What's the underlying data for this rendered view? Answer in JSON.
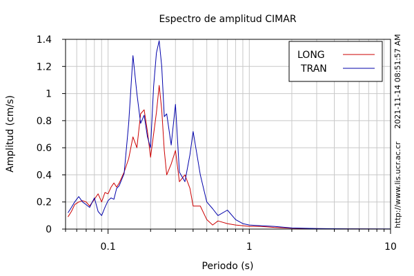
{
  "chart_data": {
    "type": "line",
    "title": "Espectro de amplitud CIMAR",
    "xlabel": "Periodo (s)",
    "ylabel": "Amplitud (cm/s)",
    "xscale": "log",
    "xlim": [
      0.05,
      10
    ],
    "ylim": [
      0,
      1.4
    ],
    "x_ticks": [
      {
        "value": 0.1,
        "label": "0.1"
      },
      {
        "value": 1,
        "label": "1"
      },
      {
        "value": 10,
        "label": "10"
      }
    ],
    "y_ticks": [
      {
        "value": 0,
        "label": "0"
      },
      {
        "value": 0.2,
        "label": "0.2"
      },
      {
        "value": 0.4,
        "label": "0.4"
      },
      {
        "value": 0.6,
        "label": "0.6"
      },
      {
        "value": 0.8,
        "label": "0.8"
      },
      {
        "value": 1,
        "label": "1"
      },
      {
        "value": 1.2,
        "label": "1.2"
      },
      {
        "value": 1.4,
        "label": "1.4"
      }
    ],
    "grid": true,
    "legend_position": "top-right",
    "series": [
      {
        "name": "LONG",
        "color": "#cc0000",
        "x": [
          0.052,
          0.055,
          0.058,
          0.062,
          0.066,
          0.07,
          0.074,
          0.08,
          0.085,
          0.09,
          0.095,
          0.1,
          0.105,
          0.11,
          0.115,
          0.12,
          0.13,
          0.14,
          0.15,
          0.16,
          0.17,
          0.18,
          0.19,
          0.2,
          0.21,
          0.22,
          0.23,
          0.24,
          0.25,
          0.26,
          0.28,
          0.3,
          0.32,
          0.35,
          0.38,
          0.4,
          0.45,
          0.5,
          0.55,
          0.6,
          0.7,
          0.8,
          0.9,
          1.0,
          1.2,
          1.5,
          2.0,
          3.0,
          5.0,
          10.0
        ],
        "y": [
          0.09,
          0.13,
          0.18,
          0.2,
          0.21,
          0.2,
          0.17,
          0.22,
          0.26,
          0.2,
          0.27,
          0.26,
          0.31,
          0.34,
          0.31,
          0.34,
          0.42,
          0.52,
          0.68,
          0.6,
          0.85,
          0.88,
          0.72,
          0.53,
          0.7,
          0.86,
          1.06,
          0.88,
          0.58,
          0.4,
          0.48,
          0.58,
          0.35,
          0.4,
          0.3,
          0.17,
          0.17,
          0.07,
          0.03,
          0.06,
          0.04,
          0.03,
          0.025,
          0.02,
          0.02,
          0.012,
          0.006,
          0.003,
          0.001,
          0.0
        ]
      },
      {
        "name": "TRAN",
        "color": "#0000aa",
        "x": [
          0.052,
          0.055,
          0.058,
          0.062,
          0.066,
          0.07,
          0.074,
          0.08,
          0.085,
          0.09,
          0.095,
          0.1,
          0.105,
          0.11,
          0.115,
          0.12,
          0.13,
          0.14,
          0.15,
          0.16,
          0.17,
          0.18,
          0.19,
          0.2,
          0.21,
          0.22,
          0.23,
          0.24,
          0.25,
          0.26,
          0.28,
          0.3,
          0.32,
          0.35,
          0.38,
          0.4,
          0.45,
          0.5,
          0.55,
          0.6,
          0.7,
          0.8,
          0.9,
          1.0,
          1.2,
          1.5,
          2.0,
          3.0,
          5.0,
          10.0
        ],
        "y": [
          0.12,
          0.16,
          0.2,
          0.24,
          0.2,
          0.18,
          0.16,
          0.23,
          0.13,
          0.1,
          0.16,
          0.21,
          0.23,
          0.22,
          0.3,
          0.32,
          0.41,
          0.78,
          1.28,
          1.0,
          0.78,
          0.84,
          0.68,
          0.6,
          1.05,
          1.3,
          1.39,
          1.2,
          0.83,
          0.85,
          0.62,
          0.92,
          0.42,
          0.35,
          0.55,
          0.72,
          0.4,
          0.2,
          0.15,
          0.1,
          0.14,
          0.07,
          0.04,
          0.03,
          0.025,
          0.02,
          0.008,
          0.004,
          0.002,
          0.001
        ]
      }
    ],
    "side_annotations": [
      "2021-11-14 08:51:57 AM",
      "http://www.lis.ucr.ac.cr"
    ]
  }
}
